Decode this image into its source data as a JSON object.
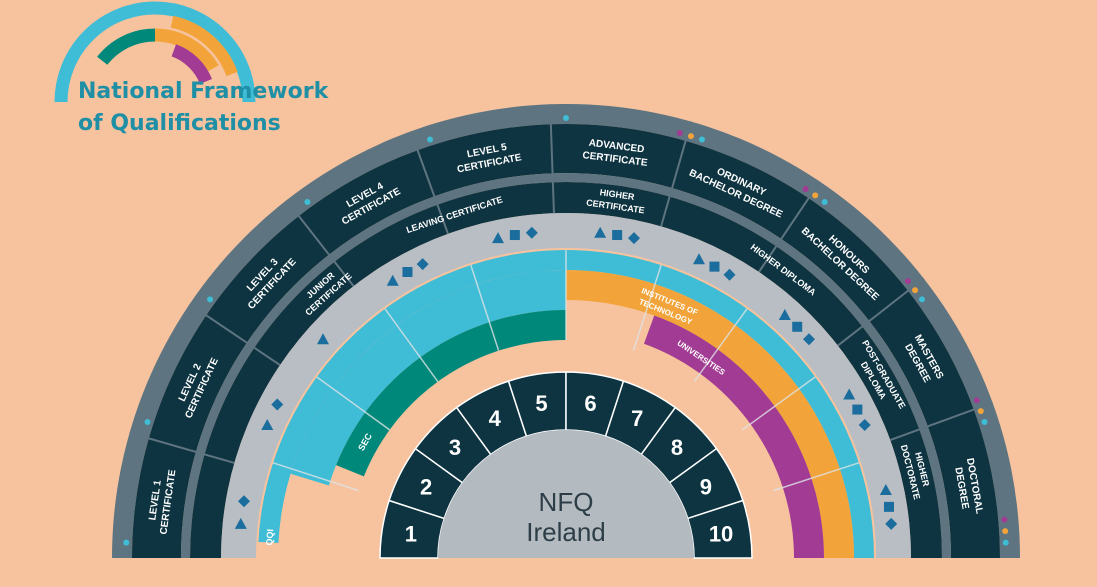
{
  "header": {
    "title_line1": "National Framework",
    "title_line2": "of Qualifications"
  },
  "center": {
    "line1": "NFQ",
    "line2": "Ireland"
  },
  "levels": [
    "1",
    "2",
    "3",
    "4",
    "5",
    "6",
    "7",
    "8",
    "9",
    "10"
  ],
  "award_bodies": {
    "qqi": "QQI",
    "sec": "SEC",
    "iot_line1": "INSTITUTES OF",
    "iot_line2": "TECHNOLOGY",
    "universities": "UNIVERSITIES"
  },
  "outer_awards": [
    {
      "line1": "LEVEL 1",
      "line2": "CERTIFICATE"
    },
    {
      "line1": "LEVEL 2",
      "line2": "CERTIFICATE"
    },
    {
      "line1": "LEVEL 3",
      "line2": "CERTIFICATE"
    },
    {
      "line1": "LEVEL 4",
      "line2": "CERTIFICATE"
    },
    {
      "line1": "LEVEL 5",
      "line2": "CERTIFICATE"
    },
    {
      "line1": "ADVANCED",
      "line2": "CERTIFICATE"
    },
    {
      "line1": "ORDINARY",
      "line2": "BACHELOR DEGREE"
    },
    {
      "line1": "HONOURS",
      "line2": "BACHELOR DEGREE"
    },
    {
      "line1": "MASTERS",
      "line2": "DEGREE"
    },
    {
      "line1": "DOCTORAL",
      "line2": "DEGREE"
    }
  ],
  "inner_awards": [
    {
      "line1": "JUNIOR",
      "line2": "CERTIFICATE"
    },
    {
      "line1": "LEAVING CERTIFICATE",
      "line2": ""
    },
    {
      "line1": "HIGHER",
      "line2": "CERTIFICATE"
    },
    {
      "line1": "HIGHER DIPLOMA",
      "line2": ""
    },
    {
      "line1": "POST-GRADUATE",
      "line2": "DIPLOMA"
    },
    {
      "line1": "HIGHER",
      "line2": "DOCTORATE"
    }
  ],
  "colors": {
    "background": "#f6c39e",
    "navy": "#0e3441",
    "slate": "#5e7480",
    "light_grey": "#b8bec3",
    "center_grey": "#b4bbc0",
    "cyan": "#3fbcd6",
    "teal": "#00897b",
    "orange": "#f2a43a",
    "purple": "#a23b93",
    "icon_blue": "#1b6d9e",
    "logo_text": "#1f8fa6"
  }
}
